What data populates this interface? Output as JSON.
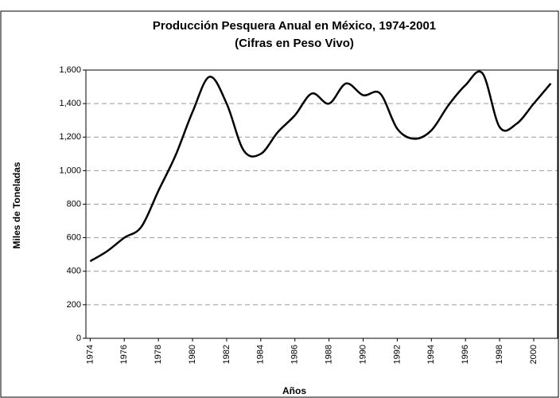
{
  "chart_data": {
    "type": "line",
    "title": "Producción Pesquera Anual en México, 1974-2001",
    "subtitle": "(Cifras en Peso Vivo)",
    "x_label": "Años",
    "y_label": "Miles de Toneladas",
    "x": [
      1974,
      1975,
      1976,
      1977,
      1978,
      1979,
      1980,
      1981,
      1982,
      1983,
      1984,
      1985,
      1986,
      1987,
      1988,
      1989,
      1990,
      1991,
      1992,
      1993,
      1994,
      1995,
      1996,
      1997,
      1998,
      1999,
      2000,
      2001
    ],
    "series": [
      {
        "name": "Producción",
        "color": "#000000",
        "values": [
          460,
          520,
          600,
          665,
          880,
          1090,
          1350,
          1560,
          1400,
          1120,
          1100,
          1230,
          1330,
          1460,
          1400,
          1520,
          1450,
          1460,
          1250,
          1190,
          1240,
          1390,
          1510,
          1580,
          1260,
          1280,
          1400,
          1520
        ]
      }
    ],
    "xlim": [
      1973.75,
      2001.4
    ],
    "xticks": [
      1974,
      1976,
      1978,
      1980,
      1982,
      1984,
      1986,
      1988,
      1990,
      1992,
      1994,
      1996,
      1998,
      2000
    ],
    "ylim": [
      0,
      1600
    ],
    "yticks": [
      0,
      200,
      400,
      600,
      800,
      {
        "value": 1000,
        "label": "1,000"
      },
      {
        "value": 1200,
        "label": "1,200"
      },
      {
        "value": 1400,
        "label": "1,400"
      },
      {
        "value": 1600,
        "label": "1,600"
      }
    ],
    "grid": true
  }
}
